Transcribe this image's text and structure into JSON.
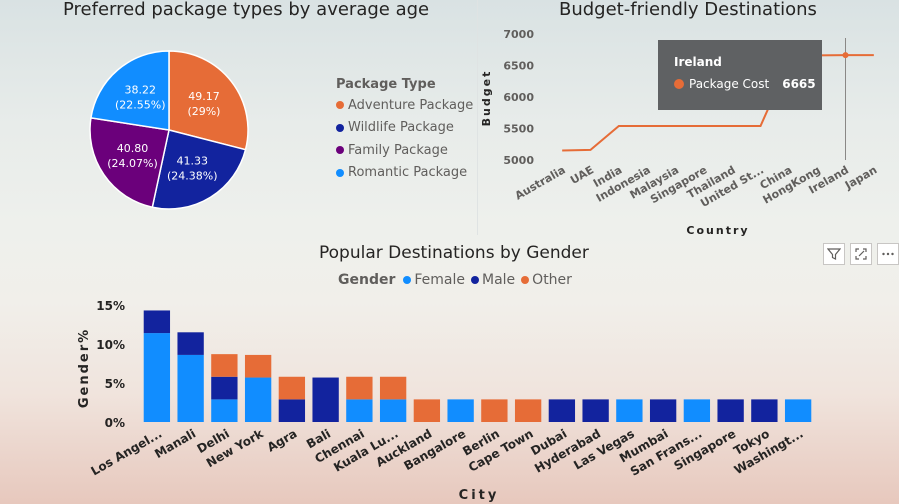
{
  "pie_panel": {
    "title": "Preferred package types by average age",
    "legend_title": "Package Type"
  },
  "line_panel": {
    "title": "Budget-friendly Destinations",
    "tooltip": {
      "country": "Ireland",
      "series": "Package Cost",
      "value": "6665"
    }
  },
  "bar_panel": {
    "title": "Popular Destinations by Gender",
    "legend_title": "Gender"
  },
  "colors": {
    "adventure": "#e66c37",
    "wildlife": "#12239e",
    "family": "#6b007b",
    "romantic": "#118dff",
    "line": "#e66c37",
    "female": "#118dff",
    "male": "#12239e",
    "other": "#e66c37"
  },
  "icons": [
    "filter-icon",
    "focus-mode-icon",
    "more-options-icon"
  ],
  "chart_data": [
    {
      "type": "pie",
      "title": "Preferred package types by average age",
      "legend_title": "Package Type",
      "slices": [
        {
          "name": "Adventure Package",
          "value": 49.17,
          "label": "49.17",
          "pct": "(29%)",
          "color": "#e66c37"
        },
        {
          "name": "Wildlife Package",
          "value": 41.33,
          "label": "41.33",
          "pct": "(24.38%)",
          "color": "#12239e"
        },
        {
          "name": "Family Package",
          "value": 40.8,
          "label": "40.80",
          "pct": "(24.07%)",
          "color": "#6b007b"
        },
        {
          "name": "Romantic Package",
          "value": 38.22,
          "label": "38.22",
          "pct": "(22.55%)",
          "color": "#118dff"
        }
      ]
    },
    {
      "type": "line",
      "title": "Budget-friendly Destinations",
      "xlabel": "Country",
      "ylabel": "Budget",
      "ylim": [
        5000,
        7000
      ],
      "yticks": [
        "5000",
        "5500",
        "6000",
        "6500",
        "7000"
      ],
      "categories": [
        "Australia",
        "UAE",
        "India",
        "Indonesia",
        "Malaysia",
        "Singapore",
        "Thailand",
        "United St...",
        "China",
        "HongKong",
        "Ireland",
        "Japan"
      ],
      "series": [
        {
          "name": "Package Cost",
          "values": [
            5150,
            5160,
            5540,
            5540,
            5540,
            5540,
            5540,
            5540,
            6550,
            6660,
            6665,
            6665
          ]
        }
      ]
    },
    {
      "type": "bar",
      "stacked": true,
      "title": "Popular Destinations by Gender",
      "legend_title": "Gender",
      "xlabel": "City",
      "ylabel": "Gender%",
      "ylim": [
        0,
        15
      ],
      "yticks": [
        "0%",
        "5%",
        "10%",
        "15%"
      ],
      "categories": [
        "Los Angel...",
        "Manali",
        "Delhi",
        "New York",
        "Agra",
        "Bali",
        "Chennai",
        "Kuala Lu...",
        "Auckland",
        "Bangalore",
        "Berlin",
        "Cape Town",
        "Dubai",
        "Hyderabad",
        "Las Vegas",
        "Mumbai",
        "San Frans...",
        "Singapore",
        "Tokyo",
        "Washingt..."
      ],
      "series": [
        {
          "name": "Female",
          "color": "#118dff",
          "values": [
            11.4,
            8.6,
            2.9,
            5.7,
            0,
            0,
            2.9,
            2.9,
            0,
            2.9,
            0,
            0,
            0,
            0,
            2.9,
            0,
            2.9,
            0,
            0,
            2.9
          ]
        },
        {
          "name": "Male",
          "color": "#12239e",
          "values": [
            2.9,
            2.9,
            2.9,
            0,
            2.9,
            5.7,
            0,
            0,
            0,
            0,
            0,
            0,
            2.9,
            2.9,
            0,
            2.9,
            0,
            2.9,
            2.9,
            0
          ]
        },
        {
          "name": "Other",
          "color": "#e66c37",
          "values": [
            0,
            0,
            2.9,
            2.9,
            2.9,
            0,
            2.9,
            2.9,
            2.9,
            0,
            2.9,
            2.9,
            0,
            0,
            0,
            0,
            0,
            0,
            0,
            0
          ]
        }
      ]
    }
  ]
}
